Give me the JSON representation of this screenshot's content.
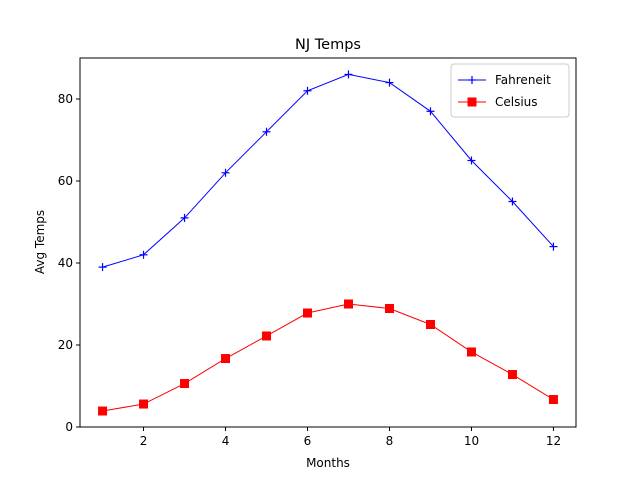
{
  "chart_data": {
    "type": "line",
    "title": "NJ Temps",
    "xlabel": "Months",
    "ylabel": "Avg Temps",
    "x": [
      1,
      2,
      3,
      4,
      5,
      6,
      7,
      8,
      9,
      10,
      11,
      12
    ],
    "xlim": [
      0.45,
      12.55
    ],
    "ylim": [
      0,
      90
    ],
    "xticks": [
      2,
      4,
      6,
      8,
      10,
      12
    ],
    "yticks": [
      0,
      20,
      40,
      60,
      80
    ],
    "grid": false,
    "legend": "top-right",
    "series": [
      {
        "name": "Fahreneit",
        "color": "#0000ff",
        "marker": "plus",
        "values": [
          39,
          42,
          51,
          62,
          72,
          82,
          86,
          84,
          77,
          65,
          55,
          44
        ]
      },
      {
        "name": "Celsius",
        "color": "#ff0000",
        "marker": "square",
        "values": [
          3.9,
          5.6,
          10.6,
          16.7,
          22.2,
          27.8,
          30.0,
          28.9,
          25.0,
          18.3,
          12.8,
          6.7
        ]
      }
    ]
  }
}
